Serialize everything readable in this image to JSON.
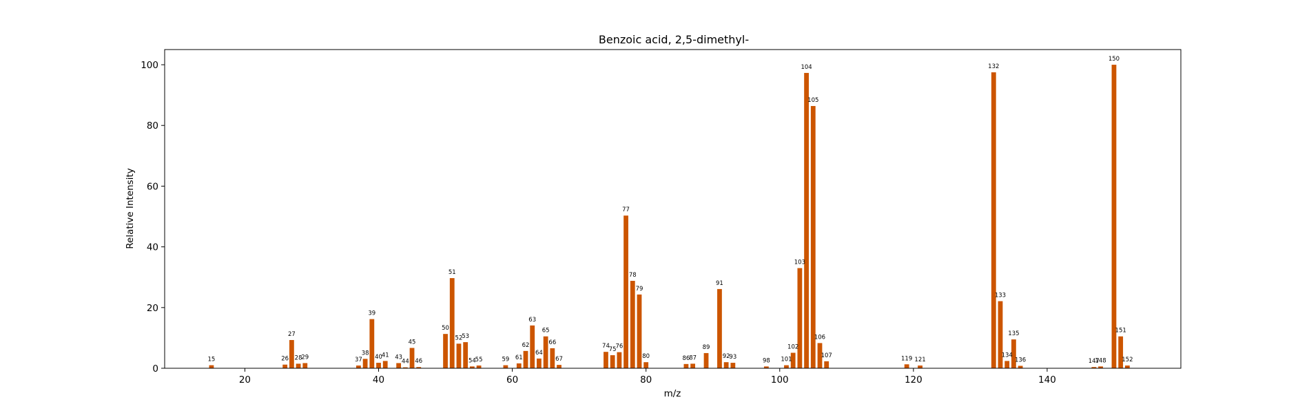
{
  "chart_data": {
    "type": "bar",
    "title": "Benzoic acid, 2,5-dimethyl-",
    "xlabel": "m/z",
    "ylabel": "Relative Intensity",
    "xlim": [
      8,
      160
    ],
    "ylim": [
      0,
      105
    ],
    "xticks": [
      20,
      40,
      60,
      80,
      100,
      120,
      140
    ],
    "yticks": [
      0,
      20,
      40,
      60,
      80,
      100
    ],
    "bar_color": "#cc5500",
    "grid": false,
    "x": [
      15,
      26,
      27,
      28,
      29,
      37,
      38,
      39,
      40,
      41,
      43,
      44,
      45,
      46,
      50,
      51,
      52,
      53,
      54,
      55,
      59,
      61,
      62,
      63,
      64,
      65,
      66,
      67,
      74,
      75,
      76,
      77,
      78,
      79,
      80,
      86,
      87,
      89,
      91,
      92,
      93,
      98,
      101,
      102,
      103,
      104,
      105,
      106,
      107,
      119,
      121,
      132,
      133,
      134,
      135,
      136,
      147,
      148,
      150,
      151,
      152
    ],
    "values": [
      1.0,
      1.2,
      9.3,
      1.5,
      1.7,
      0.9,
      3.1,
      16.2,
      1.8,
      2.4,
      1.7,
      0.3,
      6.7,
      0.4,
      11.3,
      29.7,
      8.1,
      8.6,
      0.6,
      0.9,
      1.0,
      1.6,
      5.7,
      14.1,
      3.2,
      10.5,
      6.6,
      1.1,
      5.4,
      4.3,
      5.3,
      50.3,
      28.8,
      24.3,
      2.0,
      1.4,
      1.5,
      5.0,
      26.1,
      2.0,
      1.8,
      0.6,
      1.0,
      5.1,
      33.0,
      97.3,
      86.4,
      8.3,
      2.3,
      1.3,
      0.9,
      97.5,
      22.1,
      2.4,
      9.5,
      0.8,
      0.4,
      0.6,
      100.0,
      10.5,
      0.9
    ]
  }
}
